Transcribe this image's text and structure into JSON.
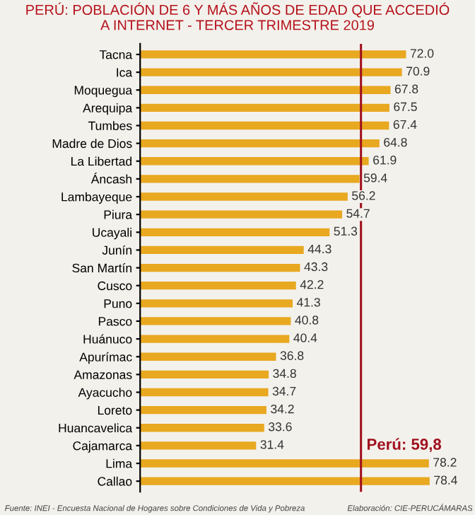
{
  "chart_data": {
    "type": "bar",
    "orientation": "horizontal",
    "title": "PERÚ: POBLACIÓN DE 6 Y MÁS AÑOS DE EDAD QUE ACCEDIÓ\nA INTERNET - TERCER TRIMESTRE 2019",
    "categories": [
      "Tacna",
      "Ica",
      "Moquegua",
      "Arequipa",
      "Tumbes",
      "Madre de Dios",
      "La Libertad",
      "Áncash",
      "Lambayeque",
      "Piura",
      "Ucayali",
      "Junín",
      "San Martín",
      "Cusco",
      "Puno",
      "Pasco",
      "Huánuco",
      "Apurímac",
      "Amazonas",
      "Ayacucho",
      "Loreto",
      "Huancavelica",
      "Cajamarca",
      "Lima",
      "Callao"
    ],
    "values": [
      72.0,
      70.9,
      67.8,
      67.5,
      67.4,
      64.8,
      61.9,
      59.4,
      56.2,
      54.7,
      51.3,
      44.3,
      43.3,
      42.2,
      41.3,
      40.8,
      40.4,
      36.8,
      34.8,
      34.7,
      34.2,
      33.6,
      31.4,
      78.2,
      78.4
    ],
    "value_labels": [
      "72.0",
      "70.9",
      "67.8",
      "67.5",
      "67.4",
      "64.8",
      "61.9",
      "59.4",
      "56.2",
      "54.7",
      "51.3",
      "44.3",
      "43.3",
      "42.2",
      "41.3",
      "40.8",
      "40.4",
      "36.8",
      "34.8",
      "34.7",
      "34.2",
      "33.6",
      "31.4",
      "78.2",
      "78.4"
    ],
    "color": "#e8a820",
    "grid": false,
    "ref_lines": [
      {
        "axis": "x",
        "value": 59.8,
        "label": "Perú: 59,8",
        "color": "#a0101e"
      }
    ],
    "annotations": [
      "Fuente: INEI - Encuesta Nacional de Hogares sobre Condiciones de Vida y Pobreza",
      "Elaboración: CIE-PERUCÁMARAS"
    ]
  }
}
